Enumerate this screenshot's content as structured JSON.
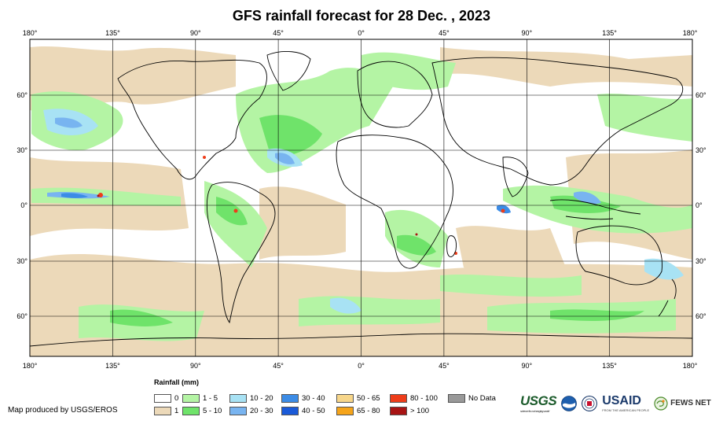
{
  "title": "GFS rainfall forecast for 28 Dec. , 2023",
  "axes": {
    "top_lon_labels": [
      "180°",
      "135°",
      "90°",
      "45°",
      "0°",
      "45°",
      "90°",
      "135°",
      "180°"
    ],
    "bottom_lon_labels": [
      "180°",
      "135°",
      "90°",
      "45°",
      "0°",
      "45°",
      "90°",
      "135°",
      "180°"
    ],
    "left_lat_labels": [
      "60°",
      "30°",
      "0°",
      "30°",
      "60°"
    ],
    "right_lat_labels": [
      "60°",
      "30°",
      "0°",
      "30°",
      "60°"
    ]
  },
  "legend": {
    "title": "Rainfall (mm)",
    "items": [
      {
        "label": "0",
        "color": "#ffffff"
      },
      {
        "label": "1",
        "color": "#ecd9b9"
      },
      {
        "label": "1 - 5",
        "color": "#b4f4a4"
      },
      {
        "label": "5 - 10",
        "color": "#6fe36a"
      },
      {
        "label": "10 - 20",
        "color": "#a8e2f4"
      },
      {
        "label": "20 - 30",
        "color": "#78b4f0"
      },
      {
        "label": "30 - 40",
        "color": "#3c8ce6"
      },
      {
        "label": "40 - 50",
        "color": "#1a5ad8"
      },
      {
        "label": "50 - 65",
        "color": "#f7d68a"
      },
      {
        "label": "65 - 80",
        "color": "#f5a41a"
      },
      {
        "label": "80 - 100",
        "color": "#ee3d1a"
      },
      {
        "label": "> 100",
        "color": "#a81414"
      },
      {
        "label": "No Data",
        "color": "#999999"
      }
    ]
  },
  "credit": "Map produced by USGS/EROS",
  "logos": {
    "usgs": "USGS",
    "usgs_tagline": "science for a changing world",
    "usaid": "USAID",
    "usaid_tagline": "FROM THE AMERICAN PEOPLE",
    "fews": "FEWS NET"
  }
}
